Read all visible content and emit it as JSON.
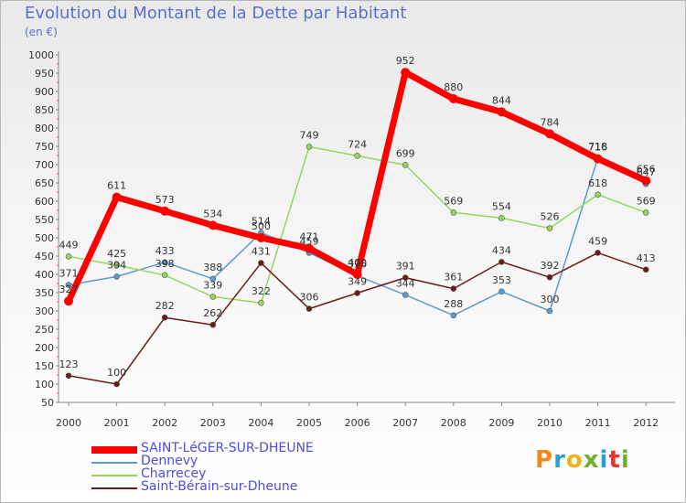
{
  "header": {
    "title": "Evolution du Montant de la Dette par Habitant",
    "subtitle": "(en €)"
  },
  "logo": {
    "text": "Proxiti"
  },
  "colors": {
    "saint_leger": "#ff0000",
    "dennevy": "#5b9bd0",
    "charrecey": "#93d85a",
    "saint_berain": "#6b1a1a",
    "axis_text": "#333333",
    "title": "#5a6fd0",
    "legend_text": "#4d4ddf"
  },
  "chart_data": {
    "type": "line",
    "title": "Evolution du Montant de la Dette par Habitant",
    "subtitle": "(en €)",
    "xlabel": "",
    "ylabel": "",
    "x": [
      "2000",
      "2001",
      "2002",
      "2003",
      "2004",
      "2005",
      "2006",
      "2007",
      "2008",
      "2009",
      "2010",
      "2011",
      "2012"
    ],
    "ylim": [
      50,
      1000
    ],
    "yticks": [
      50,
      100,
      150,
      200,
      250,
      300,
      350,
      400,
      450,
      500,
      550,
      600,
      650,
      700,
      750,
      800,
      850,
      900,
      950,
      1000
    ],
    "grid": false,
    "legend_position": "bottom-left",
    "series": [
      {
        "name": "SAINT-LéGER-SUR-DHEUNE",
        "color": "#ff0000",
        "width": 7,
        "values": [
          327,
          611,
          573,
          534,
          500,
          471,
          400,
          952,
          880,
          844,
          784,
          716,
          656
        ],
        "labels": [
          "327",
          "611",
          "573",
          "534",
          "500",
          "471",
          "400",
          "952",
          "880",
          "844",
          "784",
          "716",
          "656"
        ]
      },
      {
        "name": "Dennevy",
        "color": "#5b9bd0",
        "width": 1.5,
        "values": [
          371,
          394,
          433,
          388,
          514,
          459,
          396,
          344,
          288,
          353,
          300,
          718,
          647
        ],
        "labels": [
          "371",
          "394",
          "433",
          "388",
          "514",
          "459",
          "396",
          "344",
          "288",
          "353",
          "300",
          "718",
          "647"
        ]
      },
      {
        "name": "Charrecey",
        "color": "#93d85a",
        "width": 1.5,
        "values": [
          449,
          425,
          398,
          339,
          322,
          749,
          724,
          699,
          569,
          554,
          526,
          618,
          569
        ],
        "labels": [
          "449",
          "425",
          "398",
          "339",
          "322",
          "749",
          "724",
          "699",
          "569",
          "554",
          "526",
          "618",
          "569"
        ]
      },
      {
        "name": "Saint-Bérain-sur-Dheune",
        "color": "#6b1a1a",
        "width": 1.5,
        "values": [
          123,
          100,
          282,
          262,
          431,
          306,
          349,
          391,
          361,
          434,
          392,
          459,
          413
        ],
        "labels": [
          "123",
          "100",
          "282",
          "262",
          "431",
          "306",
          "349",
          "391",
          "361",
          "434",
          "392",
          "459",
          "413"
        ]
      }
    ]
  }
}
